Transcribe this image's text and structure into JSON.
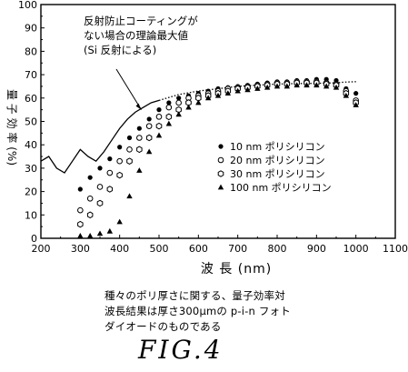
{
  "chart_data": {
    "type": "scatter",
    "xlabel": "波 長 (nm)",
    "ylabel": "量 子 効 率 (%)",
    "xlim": [
      200,
      1100
    ],
    "ylim": [
      0,
      100
    ],
    "x_ticks": [
      200,
      300,
      400,
      500,
      600,
      700,
      800,
      900,
      1000,
      1100
    ],
    "y_ticks": [
      0,
      10,
      20,
      30,
      40,
      50,
      60,
      70,
      80,
      90,
      100
    ],
    "grid": false,
    "legend_position": "right",
    "annotation": {
      "lines": [
        "反射防止コーティングが",
        "ない場合の理論最大値",
        "(Si 反射による)"
      ],
      "arrow_target": [
        455,
        55
      ]
    },
    "theoretical_curve": {
      "style": "dotted",
      "x": [
        200,
        220,
        240,
        260,
        280,
        300,
        320,
        340,
        360,
        380,
        400,
        420,
        440,
        460,
        480,
        500,
        550,
        600,
        650,
        700,
        750,
        800,
        850,
        900,
        950,
        970,
        1000
      ],
      "y": [
        33,
        35,
        30,
        28,
        33,
        38,
        35,
        33,
        37,
        42,
        47,
        51,
        54,
        56,
        58,
        59,
        61.5,
        63,
        64,
        65,
        65.5,
        66,
        66.2,
        66.3,
        66.5,
        66.8,
        67
      ]
    },
    "series": [
      {
        "name": "10 nm ポリシリコン",
        "marker": "filled-circle",
        "x": [
          300,
          325,
          350,
          375,
          400,
          425,
          450,
          475,
          500,
          525,
          550,
          575,
          600,
          625,
          650,
          675,
          700,
          725,
          750,
          775,
          800,
          825,
          850,
          875,
          900,
          925,
          950,
          975,
          1000
        ],
        "y": [
          21,
          26,
          30,
          34,
          39,
          43,
          47,
          51,
          55,
          58,
          60,
          61,
          62,
          63,
          64,
          64.5,
          65,
          65.5,
          66,
          66.5,
          67,
          67,
          67.5,
          67.5,
          68,
          68,
          67.5,
          64,
          62
        ]
      },
      {
        "name": "20 nm ポリシリコン",
        "marker": "open-circle",
        "x": [
          300,
          325,
          350,
          375,
          400,
          425,
          450,
          475,
          500,
          525,
          550,
          575,
          600,
          625,
          650,
          675,
          700,
          725,
          750,
          775,
          800,
          825,
          850,
          875,
          900,
          925,
          950,
          975,
          1000
        ],
        "y": [
          12,
          17,
          22,
          28,
          33,
          38,
          43,
          48,
          52,
          56,
          58,
          60,
          61,
          62,
          63,
          64,
          64.5,
          65,
          65.5,
          66,
          66.5,
          66.5,
          67,
          67,
          67,
          66.5,
          66,
          63,
          59
        ]
      },
      {
        "name": "30 nm ポリシリコン",
        "marker": "open-hexagon",
        "x": [
          300,
          325,
          350,
          375,
          400,
          425,
          450,
          475,
          500,
          525,
          550,
          575,
          600,
          625,
          650,
          675,
          700,
          725,
          750,
          775,
          800,
          825,
          850,
          875,
          900,
          925,
          950,
          975,
          1000
        ],
        "y": [
          6,
          10,
          15,
          21,
          27,
          33,
          38,
          43,
          48,
          52,
          55,
          58,
          60,
          61,
          62,
          63,
          64,
          64.5,
          65,
          65.5,
          66,
          66,
          66.5,
          66.5,
          66.5,
          66,
          65.5,
          62,
          58
        ]
      },
      {
        "name": "100 nm ポリシリコン",
        "marker": "filled-triangle",
        "x": [
          300,
          325,
          350,
          375,
          400,
          425,
          450,
          475,
          500,
          525,
          550,
          575,
          600,
          625,
          650,
          675,
          700,
          725,
          750,
          775,
          800,
          825,
          850,
          875,
          900,
          925,
          950,
          975,
          1000
        ],
        "y": [
          1,
          1,
          2,
          3,
          7,
          18,
          29,
          37,
          44,
          49,
          53,
          56,
          58,
          60,
          61,
          62,
          63,
          63.5,
          64,
          64.5,
          65,
          65,
          65.5,
          65.5,
          65.5,
          65,
          64.5,
          61,
          57
        ]
      }
    ]
  },
  "caption": {
    "line1": "種々のポリ厚さに関する、量子効率対",
    "line2": "波長結果は厚さ300μmの p-i-n フォト",
    "line3": "ダイオードのものである"
  },
  "figure_label": "FIG.4"
}
